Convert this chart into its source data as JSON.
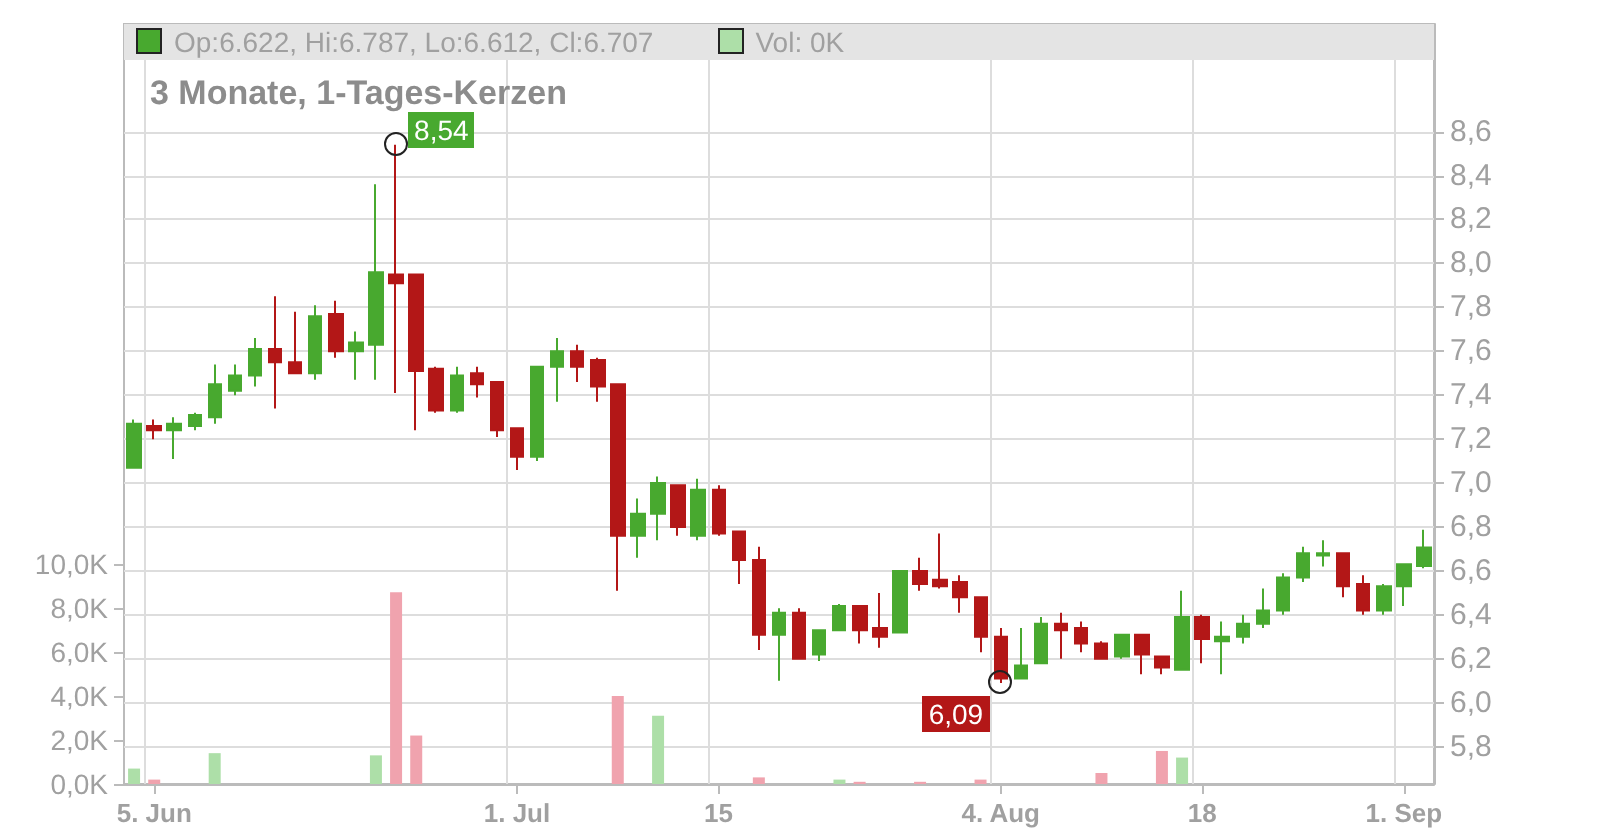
{
  "chart_data": {
    "type": "candlestick",
    "title": "3 Monate, 1-Tages-Kerzen",
    "categories": [
      null,
      "5. Jun",
      null,
      null,
      null,
      null,
      null,
      null,
      null,
      null,
      null,
      null,
      null,
      null,
      null,
      null,
      null,
      null,
      null,
      "1. Jul",
      null,
      null,
      null,
      null,
      null,
      null,
      null,
      null,
      null,
      "15",
      null,
      null,
      null,
      null,
      null,
      null,
      null,
      null,
      null,
      null,
      null,
      null,
      null,
      "4. Aug",
      null,
      null,
      null,
      null,
      null,
      null,
      null,
      null,
      null,
      "18",
      null,
      null,
      null,
      null,
      null,
      null,
      null,
      null,
      null,
      "1. Sep",
      null
    ],
    "series": [
      {
        "ohlc": [
          [
            7.07,
            7.29,
            7.07,
            7.27
          ],
          [
            7.26,
            7.29,
            7.2,
            7.24
          ],
          [
            7.24,
            7.3,
            7.11,
            7.27
          ],
          [
            7.26,
            7.32,
            7.24,
            7.31
          ],
          [
            7.3,
            7.54,
            7.27,
            7.45
          ],
          [
            7.42,
            7.54,
            7.4,
            7.49
          ],
          [
            7.49,
            7.66,
            7.44,
            7.61
          ],
          [
            7.61,
            7.85,
            7.34,
            7.55
          ],
          [
            7.55,
            7.78,
            7.5,
            7.5
          ],
          [
            7.5,
            7.81,
            7.47,
            7.76
          ],
          [
            7.77,
            7.83,
            7.57,
            7.6
          ],
          [
            7.6,
            7.69,
            7.47,
            7.64
          ],
          [
            7.63,
            8.36,
            7.47,
            7.96
          ],
          [
            7.95,
            8.54,
            7.41,
            7.91
          ],
          [
            7.95,
            7.95,
            7.24,
            7.51
          ],
          [
            7.52,
            7.53,
            7.32,
            7.33
          ],
          [
            7.33,
            7.53,
            7.32,
            7.49
          ],
          [
            7.5,
            7.53,
            7.39,
            7.45
          ],
          [
            7.46,
            7.46,
            7.21,
            7.24
          ],
          [
            7.25,
            7.25,
            7.06,
            7.12
          ],
          [
            7.12,
            7.53,
            7.1,
            7.53
          ],
          [
            7.53,
            7.66,
            7.37,
            7.6
          ],
          [
            7.6,
            7.63,
            7.46,
            7.53
          ],
          [
            7.56,
            7.57,
            7.37,
            7.44
          ],
          [
            7.45,
            7.45,
            6.51,
            6.76
          ],
          [
            6.76,
            6.93,
            6.66,
            6.86
          ],
          [
            6.86,
            7.03,
            6.74,
            7.0
          ],
          [
            6.99,
            6.99,
            6.76,
            6.8
          ],
          [
            6.76,
            7.02,
            6.74,
            6.97
          ],
          [
            6.97,
            6.99,
            6.76,
            6.77
          ],
          [
            6.78,
            6.78,
            6.54,
            6.65
          ],
          [
            6.65,
            6.71,
            6.24,
            6.31
          ],
          [
            6.31,
            6.43,
            6.1,
            6.41
          ],
          [
            6.41,
            6.43,
            6.2,
            6.2
          ],
          [
            6.22,
            6.33,
            6.19,
            6.33
          ],
          [
            6.33,
            6.45,
            6.33,
            6.44
          ],
          [
            6.44,
            6.44,
            6.27,
            6.33
          ],
          [
            6.34,
            6.5,
            6.25,
            6.3
          ],
          [
            6.32,
            6.6,
            6.32,
            6.6
          ],
          [
            6.6,
            6.66,
            6.51,
            6.54
          ],
          [
            6.56,
            6.77,
            6.52,
            6.53
          ],
          [
            6.55,
            6.58,
            6.41,
            6.48
          ],
          [
            6.48,
            6.48,
            6.23,
            6.3
          ],
          [
            6.3,
            6.34,
            6.09,
            6.11
          ],
          [
            6.11,
            6.34,
            6.11,
            6.17
          ],
          [
            6.18,
            6.39,
            6.18,
            6.36
          ],
          [
            6.36,
            6.41,
            6.2,
            6.33
          ],
          [
            6.34,
            6.37,
            6.23,
            6.27
          ],
          [
            6.27,
            6.28,
            6.2,
            6.2
          ],
          [
            6.21,
            6.31,
            6.2,
            6.31
          ],
          [
            6.31,
            6.31,
            6.13,
            6.22
          ],
          [
            6.21,
            6.21,
            6.13,
            6.16
          ],
          [
            6.15,
            6.51,
            6.15,
            6.39
          ],
          [
            6.39,
            6.4,
            6.18,
            6.29
          ],
          [
            6.28,
            6.37,
            6.13,
            6.3
          ],
          [
            6.3,
            6.4,
            6.27,
            6.36
          ],
          [
            6.36,
            6.52,
            6.34,
            6.42
          ],
          [
            6.42,
            6.59,
            6.4,
            6.57
          ],
          [
            6.57,
            6.71,
            6.55,
            6.68
          ],
          [
            6.67,
            6.74,
            6.62,
            6.68
          ],
          [
            6.68,
            6.68,
            6.48,
            6.53
          ],
          [
            6.54,
            6.58,
            6.4,
            6.42
          ],
          [
            6.42,
            6.54,
            6.4,
            6.53
          ],
          [
            6.53,
            6.63,
            6.44,
            6.63
          ],
          [
            6.622,
            6.787,
            6.612,
            6.707
          ]
        ],
        "colors": [
          "#48a92f",
          "#b31717",
          "#48a92f",
          "#48a92f",
          "#48a92f",
          "#48a92f",
          "#48a92f",
          "#b31717",
          "#b31717",
          "#48a92f",
          "#b31717",
          "#48a92f",
          "#48a92f",
          "#b31717",
          "#b31717",
          "#b31717",
          "#48a92f",
          "#b31717",
          "#b31717",
          "#b31717",
          "#48a92f",
          "#48a92f",
          "#b31717",
          "#b31717",
          "#b31717",
          "#48a92f",
          "#48a92f",
          "#b31717",
          "#48a92f",
          "#b31717",
          "#b31717",
          "#b31717",
          "#48a92f",
          "#b31717",
          "#48a92f",
          "#48a92f",
          "#b31717",
          "#b31717",
          "#48a92f",
          "#b31717",
          "#b31717",
          "#b31717",
          "#b31717",
          "#b31717",
          "#48a92f",
          "#48a92f",
          "#b31717",
          "#b31717",
          "#b31717",
          "#48a92f",
          "#b31717",
          "#b31717",
          "#48a92f",
          "#b31717",
          "#48a92f",
          "#48a92f",
          "#48a92f",
          "#48a92f",
          "#48a92f",
          "#48a92f",
          "#b31717",
          "#b31717",
          "#48a92f",
          "#48a92f",
          "#48a92f"
        ]
      },
      {
        "type": "bar",
        "axis": "y2",
        "values": [
          0.7,
          0.2,
          0,
          0,
          1.4,
          0,
          0,
          0,
          0,
          0,
          0,
          0,
          1.3,
          8.7,
          2.2,
          0,
          0,
          0,
          0,
          0,
          0,
          0,
          0,
          0,
          4.0,
          0,
          3.1,
          0,
          0,
          0,
          0,
          0.3,
          0,
          0,
          0,
          0.2,
          0.1,
          0,
          0,
          0.1,
          0,
          0,
          0.2,
          0,
          0,
          0,
          0,
          0,
          0.5,
          0,
          0,
          1.5,
          1.2,
          0,
          0,
          0,
          0,
          0,
          0,
          0,
          0,
          0,
          0,
          0,
          0
        ],
        "colors": [
          "#addfa8",
          "#f0a3ae",
          "#addfa8",
          "#addfa8",
          "#addfa8",
          "#addfa8",
          "#addfa8",
          "#f0a3ae",
          "#f0a3ae",
          "#addfa8",
          "#f0a3ae",
          "#addfa8",
          "#addfa8",
          "#f0a3ae",
          "#f0a3ae",
          "#f0a3ae",
          "#addfa8",
          "#f0a3ae",
          "#f0a3ae",
          "#f0a3ae",
          "#addfa8",
          "#addfa8",
          "#f0a3ae",
          "#f0a3ae",
          "#f0a3ae",
          "#addfa8",
          "#addfa8",
          "#f0a3ae",
          "#addfa8",
          "#f0a3ae",
          "#f0a3ae",
          "#f0a3ae",
          "#addfa8",
          "#f0a3ae",
          "#addfa8",
          "#addfa8",
          "#f0a3ae",
          "#f0a3ae",
          "#addfa8",
          "#f0a3ae",
          "#f0a3ae",
          "#f0a3ae",
          "#f0a3ae",
          "#f0a3ae",
          "#addfa8",
          "#addfa8",
          "#f0a3ae",
          "#f0a3ae",
          "#f0a3ae",
          "#addfa8",
          "#f0a3ae",
          "#f0a3ae",
          "#addfa8",
          "#f0a3ae",
          "#addfa8",
          "#addfa8",
          "#addfa8",
          "#addfa8",
          "#addfa8",
          "#addfa8",
          "#f0a3ae",
          "#f0a3ae",
          "#addfa8",
          "#addfa8",
          "#addfa8"
        ]
      }
    ],
    "ylim": [
      5.63,
      9.09
    ],
    "yticks": [
      {
        "value": 5.8,
        "label": "5,8"
      },
      {
        "value": 6.0,
        "label": "6,0"
      },
      {
        "value": 6.2,
        "label": "6,2"
      },
      {
        "value": 6.4,
        "label": "6,4"
      },
      {
        "value": 6.6,
        "label": "6,6"
      },
      {
        "value": 6.8,
        "label": "6,8"
      },
      {
        "value": 7.0,
        "label": "7,0"
      },
      {
        "value": 7.2,
        "label": "7,2"
      },
      {
        "value": 7.4,
        "label": "7,4"
      },
      {
        "value": 7.6,
        "label": "7,6"
      },
      {
        "value": 7.8,
        "label": "7,8"
      },
      {
        "value": 8.0,
        "label": "8,0"
      },
      {
        "value": 8.2,
        "label": "8,2"
      },
      {
        "value": 8.4,
        "label": "8,4"
      },
      {
        "value": 8.6,
        "label": "8,6"
      }
    ],
    "y2lim": [
      0,
      34.5
    ],
    "y2ticks": [
      {
        "value": 0,
        "label": "0,0K"
      },
      {
        "value": 2,
        "label": "2,0K"
      },
      {
        "value": 4,
        "label": "4,0K"
      },
      {
        "value": 6,
        "label": "6,0K"
      },
      {
        "value": 8,
        "label": "8,0K"
      },
      {
        "value": 10,
        "label": "10,0K"
      }
    ],
    "grid": true,
    "annotations": [
      "8,54",
      {
        "text": "6,09",
        "x": "4. Aug",
        "y": 6.09
      },
      "Op:6.622, Hi:6.787, Lo:6.612, Cl:6.707",
      "Vol: 0K"
    ]
  }
}
